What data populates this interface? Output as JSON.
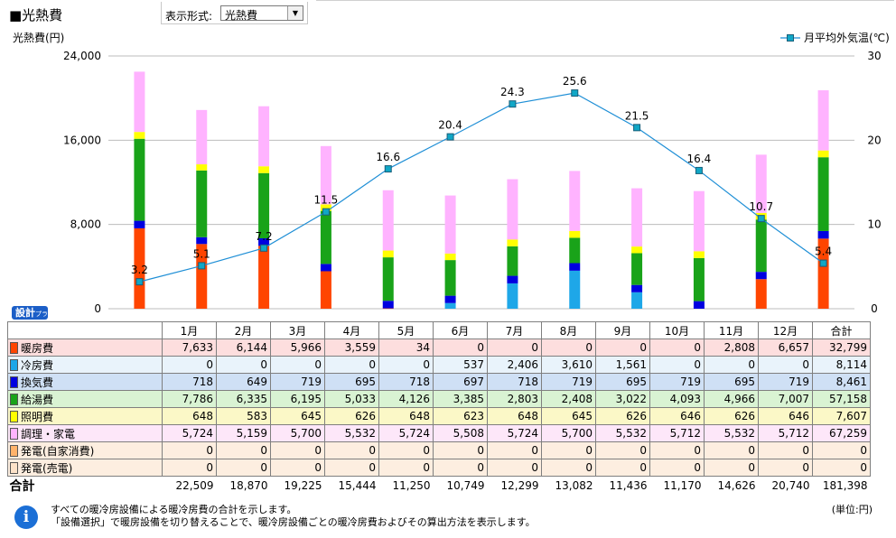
{
  "title": "■光熱費",
  "selector": {
    "label": "表示形式:",
    "value": "光熱費"
  },
  "plan_badge": "設計",
  "plan_badge_sub": "プラン",
  "table": {
    "columns": [
      "1月",
      "2月",
      "3月",
      "4月",
      "5月",
      "6月",
      "7月",
      "8月",
      "9月",
      "10月",
      "11月",
      "12月",
      "合計"
    ],
    "rows": [
      {
        "label": "暖房費",
        "color": "#ff4500",
        "bg": "#fddede",
        "values": [
          "7,633",
          "6,144",
          "5,966",
          "3,559",
          "34",
          "0",
          "0",
          "0",
          "0",
          "0",
          "2,808",
          "6,657",
          "32,799"
        ]
      },
      {
        "label": "冷房費",
        "color": "#1ea7e8",
        "bg": "#e9f3fb",
        "values": [
          "0",
          "0",
          "0",
          "0",
          "0",
          "537",
          "2,406",
          "3,610",
          "1,561",
          "0",
          "0",
          "0",
          "8,114"
        ]
      },
      {
        "label": "換気費",
        "color": "#0000e0",
        "bg": "#cfe0f5",
        "values": [
          "718",
          "649",
          "719",
          "695",
          "718",
          "697",
          "718",
          "719",
          "695",
          "719",
          "695",
          "719",
          "8,461"
        ]
      },
      {
        "label": "給湯費",
        "color": "#19a319",
        "bg": "#d9f3d3",
        "values": [
          "7,786",
          "6,335",
          "6,195",
          "5,033",
          "4,126",
          "3,385",
          "2,803",
          "2,408",
          "3,022",
          "4,093",
          "4,966",
          "7,007",
          "57,158"
        ]
      },
      {
        "label": "照明費",
        "color": "#ffff00",
        "bg": "#fbf8c7",
        "values": [
          "648",
          "583",
          "645",
          "626",
          "648",
          "623",
          "648",
          "645",
          "626",
          "646",
          "626",
          "646",
          "7,607"
        ]
      },
      {
        "label": "調理・家電",
        "color": "#ffb3ff",
        "bg": "#fde7f9",
        "values": [
          "5,724",
          "5,159",
          "5,700",
          "5,532",
          "5,724",
          "5,508",
          "5,724",
          "5,700",
          "5,532",
          "5,712",
          "5,532",
          "5,712",
          "67,259"
        ]
      },
      {
        "label": "発電(自家消費)",
        "color": "#ffb36b",
        "bg": "#fdeee0",
        "values": [
          "0",
          "0",
          "0",
          "0",
          "0",
          "0",
          "0",
          "0",
          "0",
          "0",
          "0",
          "0",
          "0"
        ]
      },
      {
        "label": "発電(売電)",
        "color": "#fde2c8",
        "bg": "#fdeee0",
        "values": [
          "0",
          "0",
          "0",
          "0",
          "0",
          "0",
          "0",
          "0",
          "0",
          "0",
          "0",
          "0",
          "0"
        ]
      }
    ],
    "total": {
      "label": "合計",
      "values": [
        "22,509",
        "18,870",
        "19,225",
        "15,444",
        "11,250",
        "10,749",
        "12,299",
        "13,082",
        "11,436",
        "11,170",
        "14,626",
        "20,740",
        "181,398"
      ]
    }
  },
  "notes": [
    "すべての暖冷房設備による暖冷房費の合計を示します。",
    "「設備選択」で暖房設備を切り替えることで、暖冷房設備ごとの暖冷房費およびその算出方法を表示します。"
  ],
  "unit": "(単位:円)",
  "chart_data": {
    "type": "bar",
    "stacked": true,
    "categories": [
      "1月",
      "2月",
      "3月",
      "4月",
      "5月",
      "6月",
      "7月",
      "8月",
      "9月",
      "10月",
      "11月",
      "12月"
    ],
    "ylabel": "光熱費(円)",
    "ylim": [
      0,
      24000
    ],
    "yticks": [
      "0",
      "8,000",
      "16,000",
      "24,000"
    ],
    "y2lim": [
      0,
      30
    ],
    "y2ticks": [
      "0",
      "10",
      "20",
      "30"
    ],
    "grid": true,
    "series": [
      {
        "name": "暖房費",
        "color": "#ff4500",
        "values": [
          7633,
          6144,
          5966,
          3559,
          34,
          0,
          0,
          0,
          0,
          0,
          2808,
          6657
        ]
      },
      {
        "name": "冷房費",
        "color": "#1ea7e8",
        "values": [
          0,
          0,
          0,
          0,
          0,
          537,
          2406,
          3610,
          1561,
          0,
          0,
          0
        ]
      },
      {
        "name": "換気費",
        "color": "#0000e0",
        "values": [
          718,
          649,
          719,
          695,
          718,
          697,
          718,
          719,
          695,
          719,
          695,
          719
        ]
      },
      {
        "name": "給湯費",
        "color": "#19a319",
        "values": [
          7786,
          6335,
          6195,
          5033,
          4126,
          3385,
          2803,
          2408,
          3022,
          4093,
          4966,
          7007
        ]
      },
      {
        "name": "照明費",
        "color": "#ffff00",
        "values": [
          648,
          583,
          645,
          626,
          648,
          623,
          648,
          645,
          626,
          646,
          626,
          646
        ]
      },
      {
        "name": "調理・家電",
        "color": "#ffb3ff",
        "values": [
          5724,
          5159,
          5700,
          5532,
          5724,
          5508,
          5724,
          5700,
          5532,
          5712,
          5532,
          5712
        ]
      }
    ],
    "line": {
      "name": "月平均外気温(℃)",
      "color": "#1f8fd6",
      "axis": "right",
      "values": [
        3.2,
        5.1,
        7.2,
        11.5,
        16.6,
        20.4,
        24.3,
        25.6,
        21.5,
        16.4,
        10.7,
        5.4
      ],
      "labels": [
        "3.2",
        "5.1",
        "7.2",
        "11.5",
        "16.6",
        "20.4",
        "24.3",
        "25.6",
        "21.5",
        "16.4",
        "10.7",
        "5.4"
      ]
    },
    "legend": "top-right"
  }
}
